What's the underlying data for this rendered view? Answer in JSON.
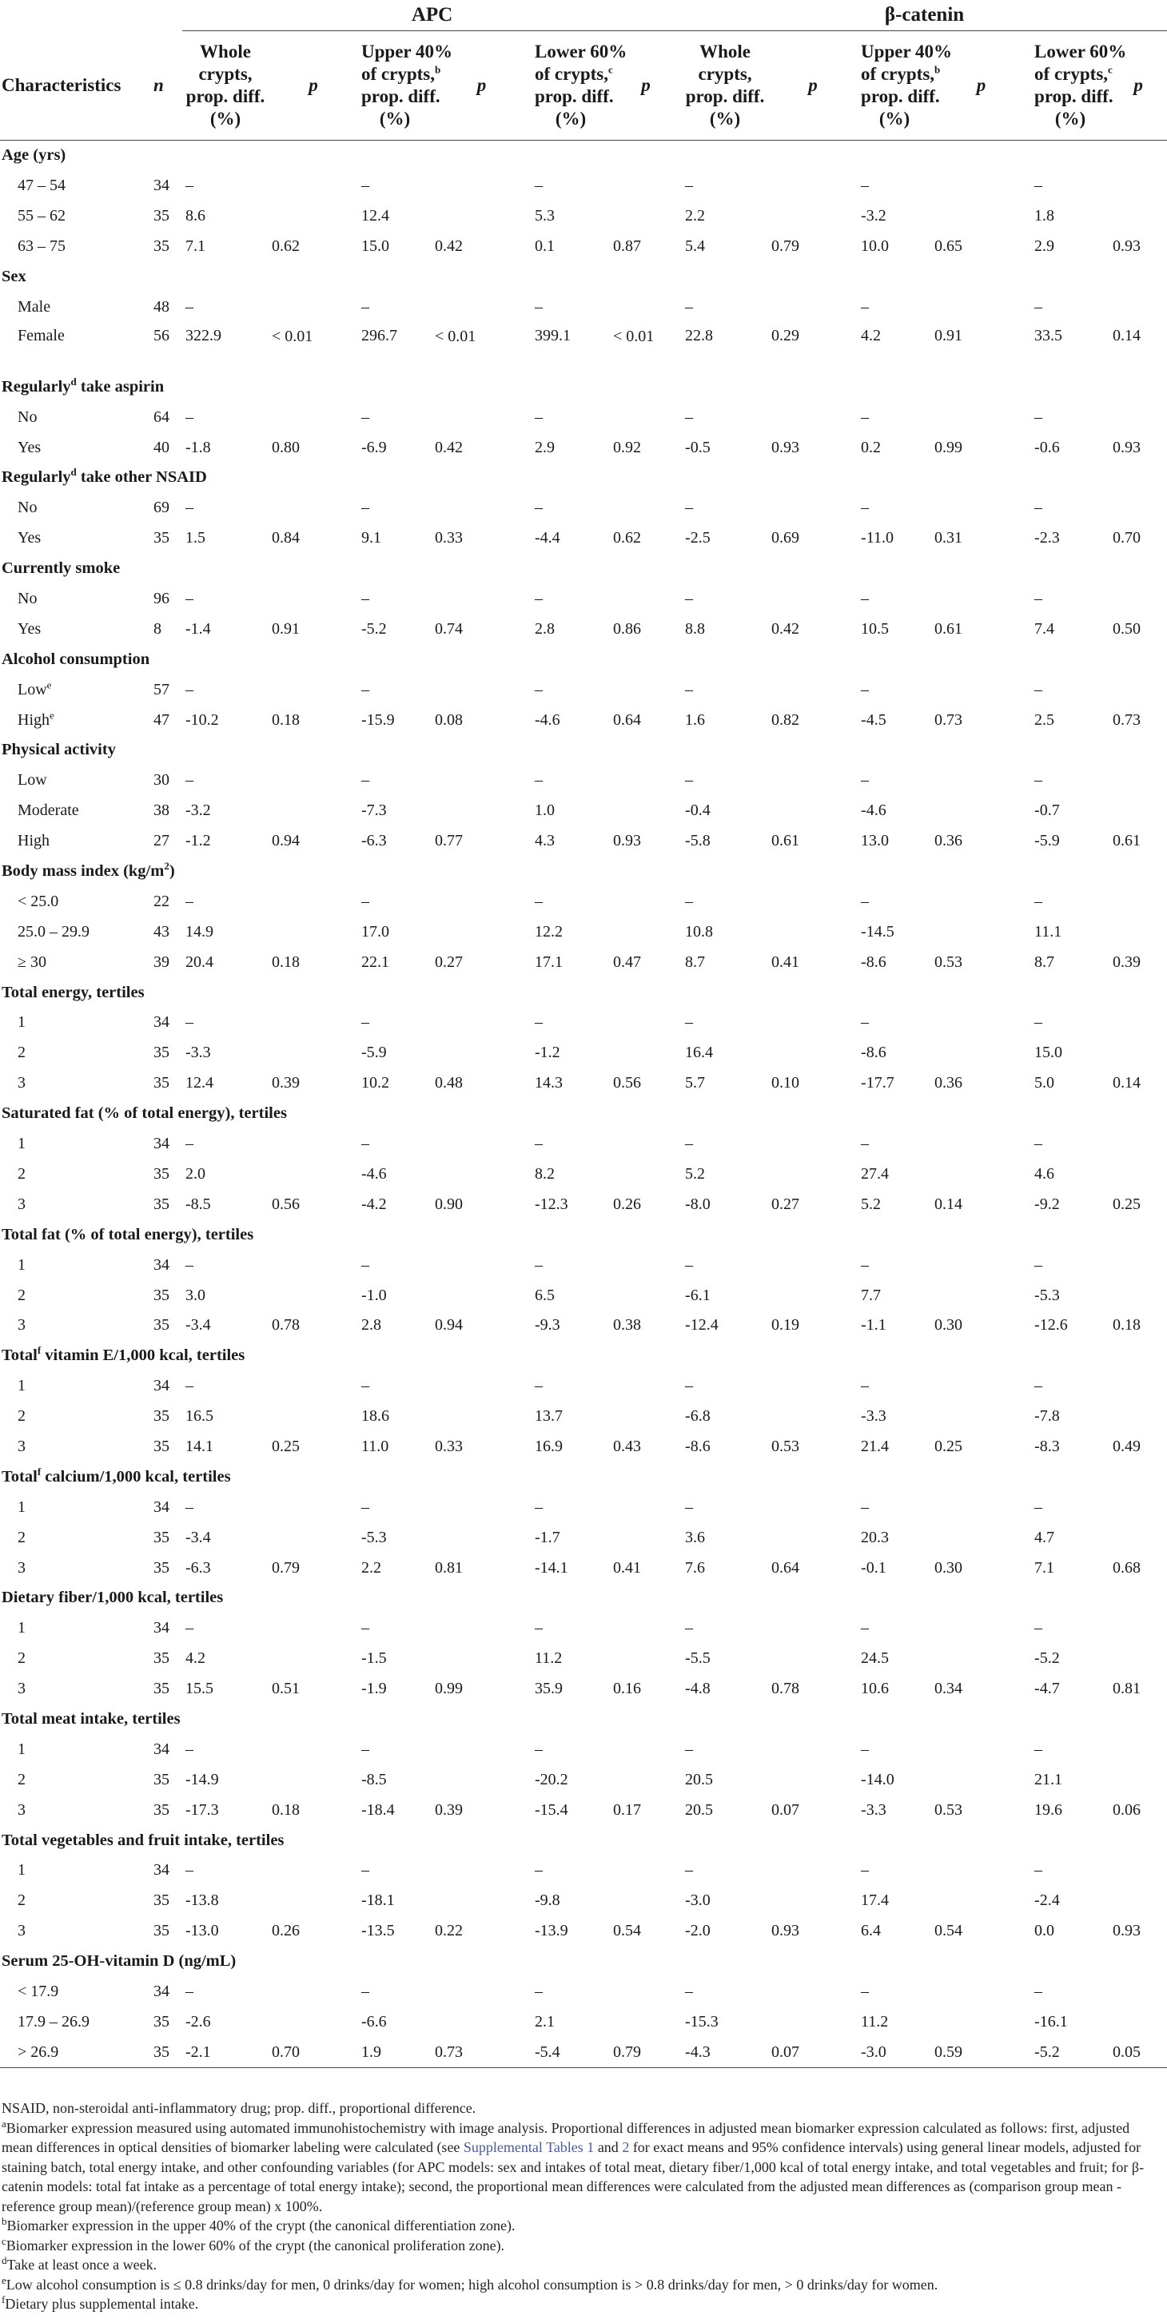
{
  "groups": {
    "apc": "APC",
    "bcat": "β-catenin"
  },
  "headers": {
    "characteristics": "Characteristics",
    "n": "n",
    "whole_l1": "Whole",
    "whole_l2": "crypts,",
    "whole_l3": "prop. diff.",
    "whole_l4": "(%)",
    "upper_l1": "Upper 40%",
    "upper_l2": "of crypts,",
    "upper_sup": "b",
    "upper_l3": "prop. diff.",
    "upper_l4": "(%)",
    "lower_l1": "Lower 60%",
    "lower_l2": "of crypts,",
    "lower_sup": "c",
    "lower_l3": "prop. diff.",
    "lower_l4": "(%)",
    "p": "p"
  },
  "rows": [
    {
      "type": "section",
      "label": "Age (yrs)"
    },
    {
      "type": "data",
      "label": "47 – 54",
      "n": "34",
      "v": [
        "–",
        "",
        "–",
        "",
        "–",
        "",
        "–",
        "",
        "–",
        "",
        "–",
        ""
      ]
    },
    {
      "type": "data",
      "label": "55 – 62",
      "n": "35",
      "v": [
        "8.6",
        "",
        "12.4",
        "",
        "5.3",
        "",
        "2.2",
        "",
        "-3.2",
        "",
        "1.8",
        ""
      ]
    },
    {
      "type": "data",
      "label": "63 – 75",
      "n": "35",
      "v": [
        "7.1",
        "0.62",
        "15.0",
        "0.42",
        "0.1",
        "0.87",
        "5.4",
        "0.79",
        "10.0",
        "0.65",
        "2.9",
        "0.93"
      ]
    },
    {
      "type": "section",
      "label": "Sex"
    },
    {
      "type": "data",
      "label": "Male",
      "n": "48",
      "v": [
        "–",
        "",
        "–",
        "",
        "–",
        "",
        "–",
        "",
        "–",
        "",
        "–",
        ""
      ]
    },
    {
      "type": "data",
      "label": "Female",
      "n": "56",
      "tall": true,
      "v": [
        "322.9",
        "< 0.01",
        "296.7",
        "< 0.01",
        "399.1",
        "< 0.01",
        "22.8",
        "0.29",
        "4.2",
        "0.91",
        "33.5",
        "0.14"
      ]
    },
    {
      "type": "section",
      "label": "Regularly take aspirin",
      "sup": "d",
      "pre": "Regularly",
      "post": " take aspirin"
    },
    {
      "type": "data",
      "label": "No",
      "n": "64",
      "v": [
        "–",
        "",
        "–",
        "",
        "–",
        "",
        "–",
        "",
        "–",
        "",
        "–",
        ""
      ]
    },
    {
      "type": "data",
      "label": "Yes",
      "n": "40",
      "v": [
        "-1.8",
        "0.80",
        "-6.9",
        "0.42",
        "2.9",
        "0.92",
        "-0.5",
        "0.93",
        "0.2",
        "0.99",
        "-0.6",
        "0.93"
      ]
    },
    {
      "type": "section",
      "label": "Regularly take other NSAID",
      "sup": "d",
      "pre": "Regularly",
      "post": " take other NSAID"
    },
    {
      "type": "data",
      "label": "No",
      "n": "69",
      "v": [
        "–",
        "",
        "–",
        "",
        "–",
        "",
        "–",
        "",
        "–",
        "",
        "–",
        ""
      ]
    },
    {
      "type": "data",
      "label": "Yes",
      "n": "35",
      "v": [
        "1.5",
        "0.84",
        "9.1",
        "0.33",
        "-4.4",
        "0.62",
        "-2.5",
        "0.69",
        "-11.0",
        "0.31",
        "-2.3",
        "0.70"
      ]
    },
    {
      "type": "section",
      "label": "Currently smoke"
    },
    {
      "type": "data",
      "label": "No",
      "n": "96",
      "v": [
        "–",
        "",
        "–",
        "",
        "–",
        "",
        "–",
        "",
        "–",
        "",
        "–",
        ""
      ]
    },
    {
      "type": "data",
      "label": "Yes",
      "n": "8",
      "v": [
        "-1.4",
        "0.91",
        "-5.2",
        "0.74",
        "2.8",
        "0.86",
        "8.8",
        "0.42",
        "10.5",
        "0.61",
        "7.4",
        "0.50"
      ]
    },
    {
      "type": "section",
      "label": "Alcohol consumption"
    },
    {
      "type": "data",
      "label": "Low",
      "sup": "e",
      "n": "57",
      "v": [
        "–",
        "",
        "–",
        "",
        "–",
        "",
        "–",
        "",
        "–",
        "",
        "–",
        ""
      ]
    },
    {
      "type": "data",
      "label": "High",
      "sup": "e",
      "n": "47",
      "v": [
        "-10.2",
        "0.18",
        "-15.9",
        "0.08",
        "-4.6",
        "0.64",
        "1.6",
        "0.82",
        "-4.5",
        "0.73",
        "2.5",
        "0.73"
      ]
    },
    {
      "type": "section",
      "label": "Physical activity"
    },
    {
      "type": "data",
      "label": "Low",
      "n": "30",
      "v": [
        "–",
        "",
        "–",
        "",
        "–",
        "",
        "–",
        "",
        "–",
        "",
        "–",
        ""
      ]
    },
    {
      "type": "data",
      "label": "Moderate",
      "n": "38",
      "v": [
        "-3.2",
        "",
        "-7.3",
        "",
        "1.0",
        "",
        "-0.4",
        "",
        "-4.6",
        "",
        "-0.7",
        ""
      ]
    },
    {
      "type": "data",
      "label": "High",
      "n": "27",
      "v": [
        "-1.2",
        "0.94",
        "-6.3",
        "0.77",
        "4.3",
        "0.93",
        "-5.8",
        "0.61",
        "13.0",
        "0.36",
        "-5.9",
        "0.61"
      ]
    },
    {
      "type": "section",
      "label": "Body mass index (kg/m2)",
      "pre": "Body mass index (kg/m",
      "sup": "2",
      "post": ")"
    },
    {
      "type": "data",
      "label": "< 25.0",
      "n": "22",
      "v": [
        "–",
        "",
        "–",
        "",
        "–",
        "",
        "–",
        "",
        "–",
        "",
        "–",
        ""
      ]
    },
    {
      "type": "data",
      "label": "25.0 – 29.9",
      "n": "43",
      "v": [
        "14.9",
        "",
        "17.0",
        "",
        "12.2",
        "",
        "10.8",
        "",
        "-14.5",
        "",
        "11.1",
        ""
      ]
    },
    {
      "type": "data",
      "label": "≥ 30",
      "n": "39",
      "v": [
        "20.4",
        "0.18",
        "22.1",
        "0.27",
        "17.1",
        "0.47",
        "8.7",
        "0.41",
        "-8.6",
        "0.53",
        "8.7",
        "0.39"
      ]
    },
    {
      "type": "section",
      "label": "Total energy, tertiles"
    },
    {
      "type": "data",
      "label": "1",
      "n": "34",
      "v": [
        "–",
        "",
        "–",
        "",
        "–",
        "",
        "–",
        "",
        "–",
        "",
        "–",
        ""
      ]
    },
    {
      "type": "data",
      "label": "2",
      "n": "35",
      "v": [
        "-3.3",
        "",
        "-5.9",
        "",
        "-1.2",
        "",
        "16.4",
        "",
        "-8.6",
        "",
        "15.0",
        ""
      ]
    },
    {
      "type": "data",
      "label": "3",
      "n": "35",
      "v": [
        "12.4",
        "0.39",
        "10.2",
        "0.48",
        "14.3",
        "0.56",
        "5.7",
        "0.10",
        "-17.7",
        "0.36",
        "5.0",
        "0.14"
      ]
    },
    {
      "type": "section",
      "label": "Saturated fat (% of total energy), tertiles"
    },
    {
      "type": "data",
      "label": "1",
      "n": "34",
      "v": [
        "–",
        "",
        "–",
        "",
        "–",
        "",
        "–",
        "",
        "–",
        "",
        "–",
        ""
      ]
    },
    {
      "type": "data",
      "label": "2",
      "n": "35",
      "v": [
        "2.0",
        "",
        "-4.6",
        "",
        "8.2",
        "",
        "5.2",
        "",
        "27.4",
        "",
        "4.6",
        ""
      ]
    },
    {
      "type": "data",
      "label": "3",
      "n": "35",
      "v": [
        "-8.5",
        "0.56",
        "-4.2",
        "0.90",
        "-12.3",
        "0.26",
        "-8.0",
        "0.27",
        "5.2",
        "0.14",
        "-9.2",
        "0.25"
      ]
    },
    {
      "type": "section",
      "label": "Total fat (% of total energy), tertiles"
    },
    {
      "type": "data",
      "label": "1",
      "n": "34",
      "v": [
        "–",
        "",
        "–",
        "",
        "–",
        "",
        "–",
        "",
        "–",
        "",
        "–",
        ""
      ]
    },
    {
      "type": "data",
      "label": "2",
      "n": "35",
      "v": [
        "3.0",
        "",
        "-1.0",
        "",
        "6.5",
        "",
        "-6.1",
        "",
        "7.7",
        "",
        "-5.3",
        ""
      ]
    },
    {
      "type": "data",
      "label": "3",
      "n": "35",
      "v": [
        "-3.4",
        "0.78",
        "2.8",
        "0.94",
        "-9.3",
        "0.38",
        "-12.4",
        "0.19",
        "-1.1",
        "0.30",
        "-12.6",
        "0.18"
      ]
    },
    {
      "type": "section",
      "label": "Total vitamin E/1,000 kcal, tertiles",
      "pre": "Total",
      "sup": "f",
      "post": " vitamin E/1,000 kcal, tertiles"
    },
    {
      "type": "data",
      "label": "1",
      "n": "34",
      "v": [
        "–",
        "",
        "–",
        "",
        "–",
        "",
        "–",
        "",
        "–",
        "",
        "–",
        ""
      ]
    },
    {
      "type": "data",
      "label": "2",
      "n": "35",
      "v": [
        "16.5",
        "",
        "18.6",
        "",
        "13.7",
        "",
        "-6.8",
        "",
        "-3.3",
        "",
        "-7.8",
        ""
      ]
    },
    {
      "type": "data",
      "label": "3",
      "n": "35",
      "v": [
        "14.1",
        "0.25",
        "11.0",
        "0.33",
        "16.9",
        "0.43",
        "-8.6",
        "0.53",
        "21.4",
        "0.25",
        "-8.3",
        "0.49"
      ]
    },
    {
      "type": "section",
      "label": "Total calcium/1,000 kcal, tertiles",
      "pre": "Total",
      "sup": "f",
      "post": " calcium/1,000 kcal, tertiles"
    },
    {
      "type": "data",
      "label": "1",
      "n": "34",
      "v": [
        "–",
        "",
        "–",
        "",
        "–",
        "",
        "–",
        "",
        "–",
        "",
        "–",
        ""
      ]
    },
    {
      "type": "data",
      "label": "2",
      "n": "35",
      "v": [
        "-3.4",
        "",
        "-5.3",
        "",
        "-1.7",
        "",
        "3.6",
        "",
        "20.3",
        "",
        "4.7",
        ""
      ]
    },
    {
      "type": "data",
      "label": "3",
      "n": "35",
      "v": [
        "-6.3",
        "0.79",
        "2.2",
        "0.81",
        "-14.1",
        "0.41",
        "7.6",
        "0.64",
        "-0.1",
        "0.30",
        "7.1",
        "0.68"
      ]
    },
    {
      "type": "section",
      "label": "Dietary fiber/1,000 kcal, tertiles"
    },
    {
      "type": "data",
      "label": "1",
      "n": "34",
      "v": [
        "–",
        "",
        "–",
        "",
        "–",
        "",
        "–",
        "",
        "–",
        "",
        "–",
        ""
      ]
    },
    {
      "type": "data",
      "label": "2",
      "n": "35",
      "v": [
        "4.2",
        "",
        "-1.5",
        "",
        "11.2",
        "",
        "-5.5",
        "",
        "24.5",
        "",
        "-5.2",
        ""
      ]
    },
    {
      "type": "data",
      "label": "3",
      "n": "35",
      "v": [
        "15.5",
        "0.51",
        "-1.9",
        "0.99",
        "35.9",
        "0.16",
        "-4.8",
        "0.78",
        "10.6",
        "0.34",
        "-4.7",
        "0.81"
      ]
    },
    {
      "type": "section",
      "label": "Total meat intake, tertiles"
    },
    {
      "type": "data",
      "label": "1",
      "n": "34",
      "v": [
        "–",
        "",
        "–",
        "",
        "–",
        "",
        "–",
        "",
        "–",
        "",
        "–",
        ""
      ]
    },
    {
      "type": "data",
      "label": "2",
      "n": "35",
      "v": [
        "-14.9",
        "",
        "-8.5",
        "",
        "-20.2",
        "",
        "20.5",
        "",
        "-14.0",
        "",
        "21.1",
        ""
      ]
    },
    {
      "type": "data",
      "label": "3",
      "n": "35",
      "v": [
        "-17.3",
        "0.18",
        "-18.4",
        "0.39",
        "-15.4",
        "0.17",
        "20.5",
        "0.07",
        "-3.3",
        "0.53",
        "19.6",
        "0.06"
      ]
    },
    {
      "type": "section",
      "label": "Total vegetables and fruit intake, tertiles"
    },
    {
      "type": "data",
      "label": "1",
      "n": "34",
      "v": [
        "–",
        "",
        "–",
        "",
        "–",
        "",
        "–",
        "",
        "–",
        "",
        "–",
        ""
      ]
    },
    {
      "type": "data",
      "label": "2",
      "n": "35",
      "v": [
        "-13.8",
        "",
        "-18.1",
        "",
        "-9.8",
        "",
        "-3.0",
        "",
        "17.4",
        "",
        "-2.4",
        ""
      ]
    },
    {
      "type": "data",
      "label": "3",
      "n": "35",
      "v": [
        "-13.0",
        "0.26",
        "-13.5",
        "0.22",
        "-13.9",
        "0.54",
        "-2.0",
        "0.93",
        "6.4",
        "0.54",
        "0.0",
        "0.93"
      ]
    },
    {
      "type": "section",
      "label": "Serum 25-OH-vitamin D (ng/mL)"
    },
    {
      "type": "data",
      "label": "< 17.9",
      "n": "34",
      "v": [
        "–",
        "",
        "–",
        "",
        "–",
        "",
        "–",
        "",
        "–",
        "",
        "–",
        ""
      ]
    },
    {
      "type": "data",
      "label": "17.9 – 26.9",
      "n": "35",
      "v": [
        "-2.6",
        "",
        "-6.6",
        "",
        "2.1",
        "",
        "-15.3",
        "",
        "11.2",
        "",
        "-16.1",
        ""
      ]
    },
    {
      "type": "data",
      "label": "> 26.9",
      "n": "35",
      "last": true,
      "v": [
        "-2.1",
        "0.70",
        "1.9",
        "0.73",
        "-5.4",
        "0.79",
        "-4.3",
        "0.07",
        "-3.0",
        "0.59",
        "-5.2",
        "0.05"
      ]
    }
  ],
  "footnotes": {
    "abbr": "NSAID, non-steroidal anti-inflammatory drug; prop. diff., proportional difference.",
    "a_sup": "a",
    "a_1": "Biomarker expression measured using automated immunohistochemistry with image analysis. Proportional differences in adjusted mean biomarker expression calculated as follows: first, adjusted mean differences in optical densities of biomarker labeling were calculated (see ",
    "a_link1": "Supplemental Tables 1",
    "a_and": " and ",
    "a_link2": "2",
    "a_2": " for exact means and 95% confidence intervals) using general linear models, adjusted for staining batch, total energy intake, and other confounding variables (for APC models: sex and intakes of total meat, dietary fiber/1,000 kcal of total energy intake, and total vegetables and fruit; for β-catenin models: total fat intake as a percentage of total energy intake); second, the proportional mean differences were calculated from the adjusted mean differences as (comparison group mean - reference group mean)/(reference group mean) x 100%.",
    "b_sup": "b",
    "b": "Biomarker expression in the upper 40% of the crypt (the canonical differentiation zone).",
    "c_sup": "c",
    "c": "Biomarker expression in the lower 60% of the crypt (the canonical proliferation zone).",
    "d_sup": "d",
    "d": "Take at least once a week.",
    "e_sup": "e",
    "e": "Low alcohol consumption is ≤ 0.8 drinks/day for men, 0 drinks/day for women; high alcohol consumption is > 0.8 drinks/day for men, > 0 drinks/day for women.",
    "f_sup": "f",
    "f": "Dietary plus supplemental intake."
  }
}
